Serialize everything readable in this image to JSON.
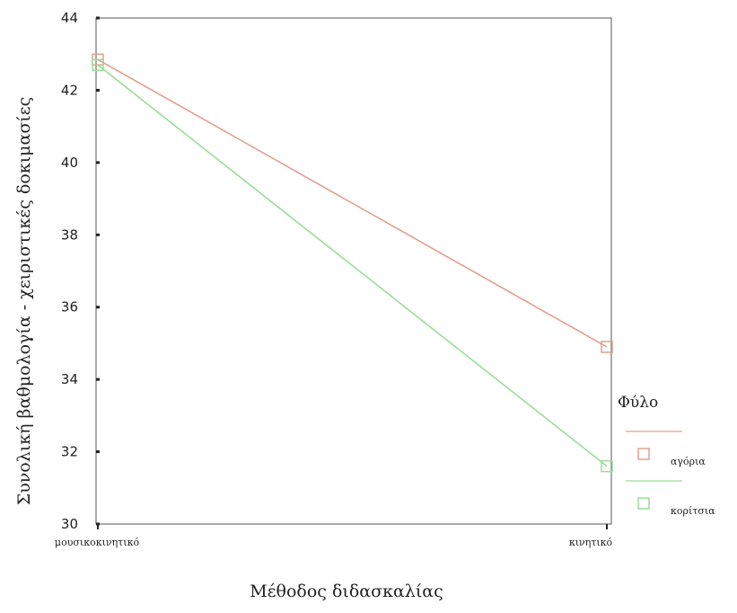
{
  "chart_data": {
    "type": "line",
    "xlabel": "Μέθοδος διδασκαλίας",
    "ylabel": "Συνολική βαθμολογία - χειριστικές δοκιμασίες",
    "categories": [
      "μουσικοκινητικό",
      "κινητικό"
    ],
    "ylim": [
      30,
      44
    ],
    "yticks": [
      30,
      32,
      34,
      36,
      38,
      40,
      42,
      44
    ],
    "grid": false,
    "legend": {
      "title": "Φύλο",
      "position": "right"
    },
    "series": [
      {
        "name": "αγόρια",
        "values": [
          42.85,
          34.9
        ],
        "color": "#e0a090"
      },
      {
        "name": "κορίτσια",
        "values": [
          42.7,
          31.6
        ],
        "color": "#99dd99"
      }
    ]
  }
}
